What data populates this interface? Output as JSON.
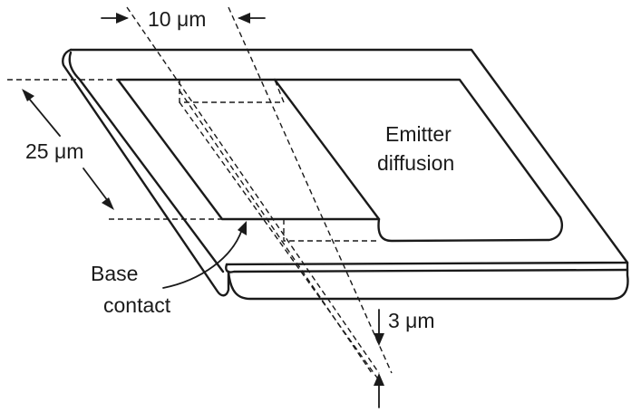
{
  "labels": {
    "width_dimension": "10 μm",
    "length_dimension": "25 μm",
    "depth_dimension": "3 μm",
    "emitter_line1": "Emitter",
    "emitter_line2": "diffusion",
    "base_line1": "Base",
    "base_line2": "contact"
  }
}
